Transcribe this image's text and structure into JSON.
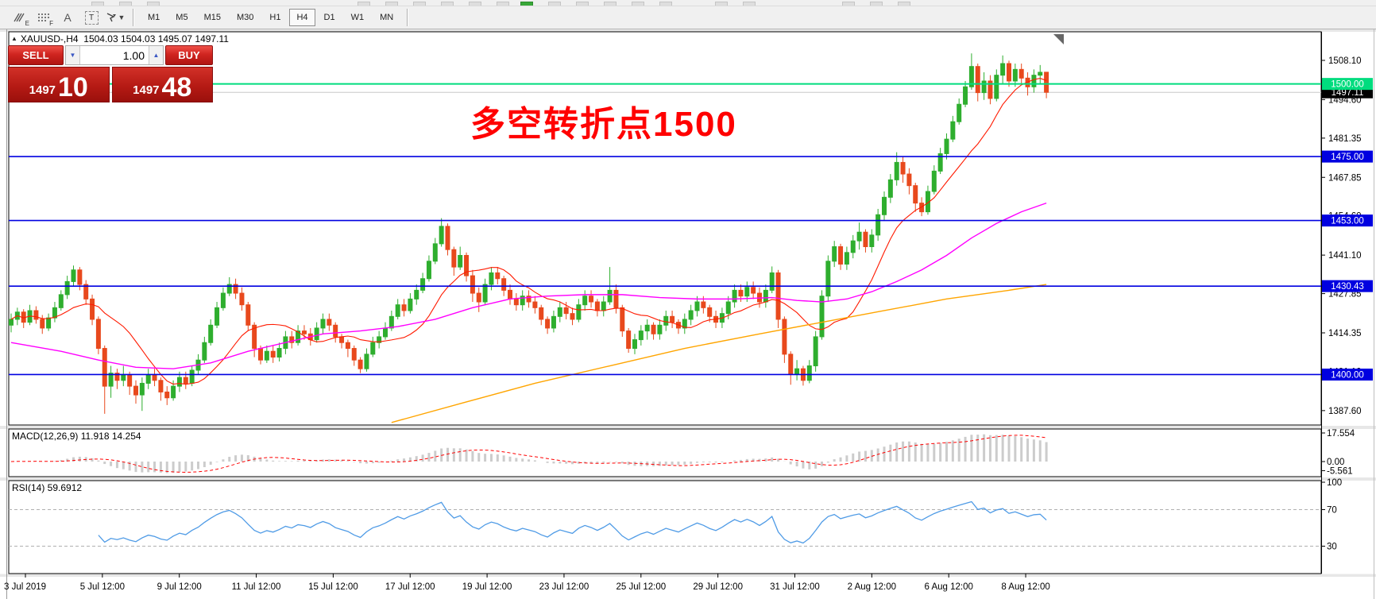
{
  "toolbar": {
    "tools": [
      {
        "name": "elliott-wave-tool",
        "label": "E"
      },
      {
        "name": "fibonacci-tool",
        "label": "F"
      },
      {
        "name": "text-tool",
        "label": "A"
      },
      {
        "name": "text-box-tool",
        "label": "T"
      },
      {
        "name": "shapes-cursor-tool",
        "label": ""
      }
    ],
    "timeframes": [
      {
        "label": "M1",
        "selected": false
      },
      {
        "label": "M5",
        "selected": false
      },
      {
        "label": "M15",
        "selected": false
      },
      {
        "label": "M30",
        "selected": false
      },
      {
        "label": "H1",
        "selected": false
      },
      {
        "label": "H4",
        "selected": true
      },
      {
        "label": "D1",
        "selected": false
      },
      {
        "label": "W1",
        "selected": false
      },
      {
        "label": "MN",
        "selected": false
      }
    ]
  },
  "chart": {
    "symbol_title": "XAUUSD-,H4",
    "ohlc": "1504.03 1504.03 1495.07 1497.11",
    "annotation": "多空转折点1500",
    "annotation_color": "#ff0000"
  },
  "trade_panel": {
    "sell_label": "SELL",
    "buy_label": "BUY",
    "volume": "1.00",
    "sell_price_major": "1497",
    "sell_price_minor": "10",
    "buy_price_major": "1497",
    "buy_price_minor": "48"
  },
  "price_axis": {
    "ticks": [
      {
        "label": "1508.10",
        "price": 1508.1
      },
      {
        "label": "1494.60",
        "price": 1494.6
      },
      {
        "label": "1481.35",
        "price": 1481.35
      },
      {
        "label": "1467.85",
        "price": 1467.85
      },
      {
        "label": "1454.60",
        "price": 1454.6
      },
      {
        "label": "1441.10",
        "price": 1441.1
      },
      {
        "label": "1427.85",
        "price": 1427.85
      },
      {
        "label": "1414.35",
        "price": 1414.35
      },
      {
        "label": "1401.10",
        "price": 1401.1
      },
      {
        "label": "1387.60",
        "price": 1387.6
      }
    ]
  },
  "time_axis": {
    "labels": [
      "3 Jul 2019",
      "5 Jul 12:00",
      "9 Jul 12:00",
      "11 Jul 12:00",
      "15 Jul 12:00",
      "17 Jul 12:00",
      "19 Jul 12:00",
      "23 Jul 12:00",
      "25 Jul 12:00",
      "29 Jul 12:00",
      "31 Jul 12:00",
      "2 Aug 12:00",
      "6 Aug 12:00",
      "8 Aug 12:00"
    ]
  },
  "levels": {
    "hlines": [
      {
        "price": 1500.0,
        "label": "1500.00",
        "color": "#00dc7e",
        "width": 2
      },
      {
        "price": 1475.0,
        "label": "1475.00",
        "color": "#0000e0",
        "width": 1.6
      },
      {
        "price": 1453.0,
        "label": "1453.00",
        "color": "#0000e0",
        "width": 1.6
      },
      {
        "price": 1430.43,
        "label": "1430.43",
        "color": "#0000e0",
        "width": 1.6
      },
      {
        "price": 1400.0,
        "label": "1400.00",
        "color": "#0000e0",
        "width": 1.6
      }
    ],
    "current_price": {
      "price": 1497.11,
      "label": "1497.11",
      "label_bg": "#000000",
      "line_color": "#c8c8c8"
    }
  },
  "macd_panel": {
    "label": "MACD(12,26,9) 11.918 14.254",
    "axis_ticks": [
      {
        "label": "17.554",
        "value": 17.554
      },
      {
        "label": "0.00",
        "value": 0
      },
      {
        "label": "-5.561",
        "value": -5.561
      }
    ],
    "histogram_color": "#cccccc",
    "signal_color": "#ff0000"
  },
  "rsi_panel": {
    "label": "RSI(14) 59.6912",
    "axis_ticks": [
      {
        "label": "100",
        "value": 100
      },
      {
        "label": "70",
        "value": 70
      },
      {
        "label": "30",
        "value": 30
      }
    ],
    "line_color": "#4f9be6",
    "level_lines": [
      70,
      30
    ]
  },
  "chart_data": {
    "type": "candlestick",
    "symbol": "XAUUSD-",
    "timeframe": "H4",
    "up_color": "#2eae2e",
    "down_color": "#e8491d",
    "candles": [
      [
        1417,
        1421,
        1414.5,
        1419
      ],
      [
        1419,
        1423,
        1417,
        1421.5
      ],
      [
        1421.5,
        1422.5,
        1416,
        1418
      ],
      [
        1418,
        1424,
        1417,
        1422
      ],
      [
        1422,
        1423.5,
        1417.5,
        1419
      ],
      [
        1419,
        1420.5,
        1414,
        1416
      ],
      [
        1416,
        1421,
        1415,
        1419.5
      ],
      [
        1419.5,
        1425,
        1418,
        1423
      ],
      [
        1423,
        1429,
        1422,
        1427.5
      ],
      [
        1427.5,
        1434,
        1426,
        1432
      ],
      [
        1432,
        1437.5,
        1430.5,
        1436
      ],
      [
        1436,
        1437,
        1429,
        1431
      ],
      [
        1431,
        1432.5,
        1424,
        1426
      ],
      [
        1426,
        1427.5,
        1417,
        1419
      ],
      [
        1419,
        1420,
        1407,
        1409
      ],
      [
        1409,
        1410,
        1386.5,
        1396
      ],
      [
        1396,
        1403,
        1392,
        1400.5
      ],
      [
        1400.5,
        1402,
        1395,
        1398
      ],
      [
        1398,
        1403,
        1396,
        1400
      ],
      [
        1400,
        1401,
        1393,
        1396
      ],
      [
        1396,
        1398,
        1390,
        1393
      ],
      [
        1393,
        1399,
        1387.5,
        1397
      ],
      [
        1397,
        1402,
        1395,
        1400
      ],
      [
        1400,
        1402,
        1396,
        1398
      ],
      [
        1398,
        1399,
        1391,
        1394
      ],
      [
        1394,
        1396,
        1389.5,
        1392
      ],
      [
        1392,
        1398,
        1391,
        1396
      ],
      [
        1396,
        1401,
        1394,
        1399
      ],
      [
        1399,
        1401,
        1395,
        1397
      ],
      [
        1397,
        1403,
        1396,
        1401.5
      ],
      [
        1401.5,
        1407,
        1400,
        1405
      ],
      [
        1405,
        1413,
        1404,
        1411
      ],
      [
        1411,
        1419,
        1410,
        1417
      ],
      [
        1417,
        1425,
        1416,
        1423
      ],
      [
        1423,
        1430,
        1422,
        1428
      ],
      [
        1428,
        1433.5,
        1427,
        1431
      ],
      [
        1431,
        1433,
        1426,
        1428
      ],
      [
        1428,
        1430,
        1422,
        1424
      ],
      [
        1424,
        1425,
        1415,
        1417
      ],
      [
        1417,
        1418,
        1406,
        1409
      ],
      [
        1409,
        1410,
        1403.5,
        1405
      ],
      [
        1405,
        1410,
        1404,
        1408
      ],
      [
        1408,
        1410,
        1404,
        1406
      ],
      [
        1406,
        1411,
        1404.5,
        1409
      ],
      [
        1409,
        1415,
        1407,
        1413
      ],
      [
        1413,
        1415,
        1409,
        1411
      ],
      [
        1411,
        1417,
        1410,
        1415
      ],
      [
        1415,
        1417,
        1412,
        1414
      ],
      [
        1414,
        1416,
        1410,
        1412
      ],
      [
        1412,
        1418,
        1411,
        1416
      ],
      [
        1416,
        1421,
        1414,
        1419
      ],
      [
        1419,
        1421,
        1415,
        1417
      ],
      [
        1417,
        1418,
        1411,
        1413
      ],
      [
        1413,
        1414,
        1409,
        1411
      ],
      [
        1411,
        1412,
        1406,
        1409
      ],
      [
        1409,
        1410,
        1403,
        1405
      ],
      [
        1405,
        1406,
        1400.5,
        1402
      ],
      [
        1402,
        1409,
        1401,
        1407
      ],
      [
        1407,
        1413,
        1406,
        1411
      ],
      [
        1411,
        1415,
        1409,
        1413
      ],
      [
        1413,
        1418,
        1412,
        1416
      ],
      [
        1416,
        1422,
        1415,
        1420
      ],
      [
        1420,
        1426,
        1419,
        1424
      ],
      [
        1424,
        1426,
        1420,
        1422
      ],
      [
        1422,
        1428,
        1421,
        1426
      ],
      [
        1426,
        1431,
        1424,
        1429
      ],
      [
        1429,
        1435,
        1428,
        1433
      ],
      [
        1433,
        1441,
        1432,
        1439
      ],
      [
        1439,
        1447,
        1438,
        1445
      ],
      [
        1445,
        1453.8,
        1444,
        1451
      ],
      [
        1451,
        1452,
        1441,
        1443
      ],
      [
        1443,
        1444,
        1434,
        1437
      ],
      [
        1437,
        1444,
        1436,
        1441
      ],
      [
        1441,
        1442,
        1432,
        1434
      ],
      [
        1434,
        1436,
        1425,
        1428
      ],
      [
        1428,
        1430,
        1421.5,
        1425
      ],
      [
        1425,
        1433,
        1424,
        1431
      ],
      [
        1431,
        1437,
        1429,
        1435
      ],
      [
        1435,
        1437,
        1431,
        1433
      ],
      [
        1433,
        1434,
        1427,
        1429
      ],
      [
        1429,
        1431,
        1424,
        1426
      ],
      [
        1426,
        1428,
        1422,
        1424
      ],
      [
        1424,
        1429,
        1422,
        1427
      ],
      [
        1427,
        1429,
        1423,
        1425
      ],
      [
        1425,
        1427,
        1421,
        1423
      ],
      [
        1423,
        1424,
        1417,
        1419
      ],
      [
        1419,
        1420,
        1414,
        1416
      ],
      [
        1416,
        1422,
        1414.5,
        1420
      ],
      [
        1420,
        1425,
        1418,
        1423
      ],
      [
        1423,
        1425,
        1419,
        1421
      ],
      [
        1421,
        1423,
        1417,
        1419
      ],
      [
        1419,
        1426,
        1418,
        1424
      ],
      [
        1424,
        1429,
        1422,
        1427
      ],
      [
        1427,
        1429,
        1423,
        1425
      ],
      [
        1425,
        1426,
        1420,
        1422
      ],
      [
        1422,
        1427,
        1420,
        1425
      ],
      [
        1425,
        1437,
        1424,
        1429
      ],
      [
        1429,
        1431,
        1421,
        1423
      ],
      [
        1423,
        1424,
        1413,
        1415
      ],
      [
        1415,
        1416,
        1407.5,
        1409
      ],
      [
        1409,
        1414,
        1407,
        1412
      ],
      [
        1412,
        1417,
        1410,
        1415
      ],
      [
        1415,
        1419,
        1412,
        1417
      ],
      [
        1417,
        1418,
        1412,
        1414
      ],
      [
        1414,
        1419,
        1412,
        1417
      ],
      [
        1417,
        1422,
        1415,
        1420
      ],
      [
        1420,
        1422,
        1416,
        1418
      ],
      [
        1418,
        1419,
        1414,
        1416
      ],
      [
        1416,
        1421,
        1414,
        1419
      ],
      [
        1419,
        1424,
        1417,
        1422
      ],
      [
        1422,
        1427,
        1420,
        1425
      ],
      [
        1425,
        1427,
        1421,
        1423
      ],
      [
        1423,
        1424,
        1418,
        1420
      ],
      [
        1420,
        1422,
        1416,
        1418
      ],
      [
        1418,
        1423,
        1416,
        1421
      ],
      [
        1421,
        1427,
        1419,
        1425
      ],
      [
        1425,
        1431,
        1423,
        1429
      ],
      [
        1429,
        1431,
        1425,
        1427
      ],
      [
        1427,
        1432,
        1425,
        1430
      ],
      [
        1430,
        1432,
        1426,
        1428
      ],
      [
        1428,
        1430,
        1423,
        1425
      ],
      [
        1425,
        1431,
        1423,
        1429
      ],
      [
        1429,
        1437.2,
        1428,
        1435
      ],
      [
        1435,
        1436,
        1416,
        1419
      ],
      [
        1419,
        1420,
        1404,
        1407
      ],
      [
        1407,
        1408,
        1396.5,
        1400
      ],
      [
        1400,
        1405,
        1398,
        1402
      ],
      [
        1402,
        1403,
        1396.2,
        1398
      ],
      [
        1398,
        1405,
        1397,
        1403
      ],
      [
        1403,
        1415,
        1401,
        1413
      ],
      [
        1413,
        1429,
        1412,
        1427
      ],
      [
        1427,
        1441,
        1425,
        1439
      ],
      [
        1439,
        1446,
        1437,
        1444
      ],
      [
        1444,
        1445,
        1436,
        1438
      ],
      [
        1438,
        1444,
        1436,
        1442
      ],
      [
        1442,
        1448,
        1440,
        1446
      ],
      [
        1446,
        1452.3,
        1443,
        1449
      ],
      [
        1449,
        1450,
        1442,
        1444
      ],
      [
        1444,
        1450,
        1442,
        1448
      ],
      [
        1448,
        1457,
        1446,
        1455
      ],
      [
        1455,
        1463,
        1453,
        1461
      ],
      [
        1461,
        1469,
        1459,
        1467
      ],
      [
        1467,
        1476.5,
        1465,
        1473
      ],
      [
        1473,
        1475,
        1466,
        1469
      ],
      [
        1469,
        1471,
        1462,
        1465
      ],
      [
        1465,
        1466,
        1456,
        1459
      ],
      [
        1459,
        1461,
        1454.5,
        1456
      ],
      [
        1456,
        1465,
        1455,
        1463
      ],
      [
        1463,
        1472,
        1462,
        1470
      ],
      [
        1470,
        1478,
        1469,
        1476
      ],
      [
        1476,
        1483,
        1474,
        1481
      ],
      [
        1481,
        1489,
        1480,
        1487
      ],
      [
        1487,
        1495,
        1486,
        1493
      ],
      [
        1493,
        1501,
        1492,
        1499
      ],
      [
        1499,
        1510.5,
        1498,
        1506
      ],
      [
        1506,
        1507,
        1494,
        1497
      ],
      [
        1497,
        1504,
        1494.5,
        1501
      ],
      [
        1501,
        1503,
        1493,
        1495
      ],
      [
        1495,
        1505,
        1494,
        1503
      ],
      [
        1503,
        1509.8,
        1500,
        1507
      ],
      [
        1507,
        1508,
        1499,
        1501
      ],
      [
        1501,
        1507,
        1499,
        1505
      ],
      [
        1505,
        1507,
        1500,
        1502
      ],
      [
        1502,
        1504,
        1496,
        1499
      ],
      [
        1499,
        1505,
        1497,
        1503
      ],
      [
        1503,
        1506.5,
        1500,
        1504
      ],
      [
        1504.03,
        1504.03,
        1495.07,
        1497.11
      ]
    ],
    "overlays": [
      {
        "name": "fast-ma",
        "type": "sma",
        "period": 12,
        "color": "#ff1a00"
      },
      {
        "name": "mid-ma",
        "type": "line",
        "color": "#ff00ff",
        "points": [
          [
            0,
            1411
          ],
          [
            8,
            1408
          ],
          [
            14,
            1405
          ],
          [
            20,
            1402.5
          ],
          [
            26,
            1402
          ],
          [
            32,
            1404
          ],
          [
            38,
            1408
          ],
          [
            44,
            1411
          ],
          [
            50,
            1414
          ],
          [
            56,
            1415
          ],
          [
            62,
            1416.5
          ],
          [
            68,
            1419
          ],
          [
            74,
            1423
          ],
          [
            80,
            1426
          ],
          [
            86,
            1427
          ],
          [
            92,
            1427.5
          ],
          [
            98,
            1427.5
          ],
          [
            104,
            1426.5
          ],
          [
            110,
            1426
          ],
          [
            116,
            1426
          ],
          [
            122,
            1426.5
          ],
          [
            126,
            1425.5
          ],
          [
            130,
            1425
          ],
          [
            134,
            1426
          ],
          [
            138,
            1428.5
          ],
          [
            142,
            1432
          ],
          [
            146,
            1436
          ],
          [
            150,
            1441
          ],
          [
            154,
            1447
          ],
          [
            158,
            1452
          ],
          [
            162,
            1456
          ],
          [
            166,
            1459
          ]
        ]
      },
      {
        "name": "slow-ma",
        "type": "line",
        "color": "#ffa500",
        "points": [
          [
            61,
            1383.5
          ],
          [
            72,
            1390
          ],
          [
            84,
            1397
          ],
          [
            96,
            1403
          ],
          [
            108,
            1409
          ],
          [
            120,
            1414
          ],
          [
            130,
            1418
          ],
          [
            140,
            1422
          ],
          [
            150,
            1426
          ],
          [
            160,
            1429
          ],
          [
            166,
            1431
          ]
        ]
      }
    ],
    "indicators": [
      {
        "name": "MACD",
        "params": [
          12,
          26,
          9
        ],
        "current_main": 11.918,
        "current_signal": 14.254
      },
      {
        "name": "RSI",
        "params": [
          14
        ],
        "current": 59.6912
      }
    ]
  }
}
